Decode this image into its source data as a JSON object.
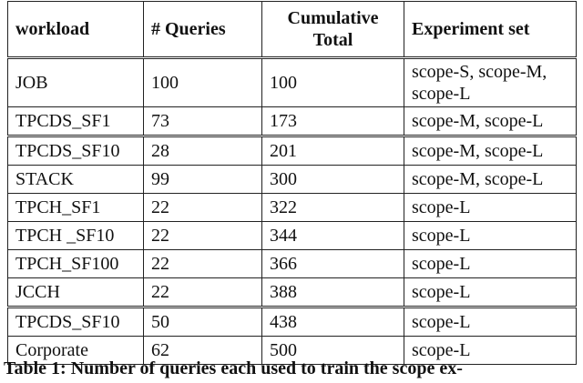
{
  "table": {
    "header": [
      "workload",
      "# Queries",
      "Cumulative Total",
      "Experiment set"
    ],
    "rows": [
      [
        "JOB",
        "100",
        "100",
        "scope-S, scope-M, scope-L"
      ],
      [
        "TPCDS_SF1",
        "73",
        "173",
        "scope-M, scope-L"
      ],
      [
        "TPCDS_SF10",
        "28",
        "201",
        "scope-M, scope-L"
      ],
      [
        "STACK",
        "99",
        "300",
        "scope-M, scope-L"
      ],
      [
        "TPCH_SF1",
        "22",
        "322",
        "scope-L"
      ],
      [
        "TPCH _SF10",
        "22",
        "344",
        "scope-L"
      ],
      [
        "TPCH_SF100",
        "22",
        "366",
        "scope-L"
      ],
      [
        "JCCH",
        "22",
        "388",
        "scope-L"
      ],
      [
        "TPCDS_SF10",
        "50",
        "438",
        "scope-L"
      ],
      [
        "Corporate",
        "62",
        "500",
        "scope-L"
      ]
    ],
    "caption": "Table 1: Number of queries each used to train the scope ex-"
  }
}
